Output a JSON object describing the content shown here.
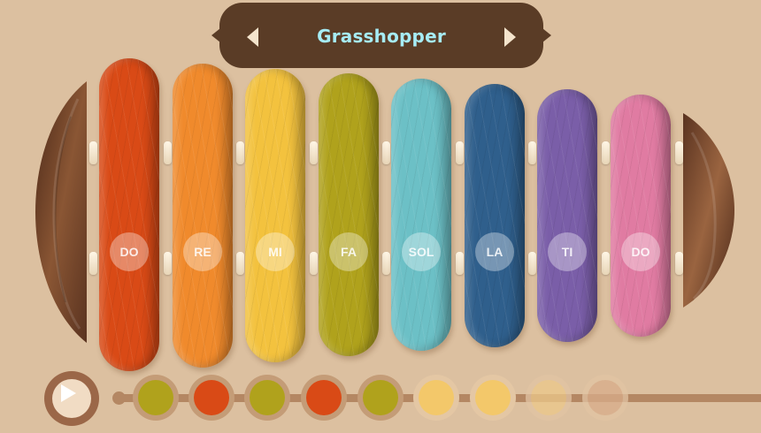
{
  "title": "Grasshopper",
  "colors": {
    "background": "#dcc0a0",
    "banner": "#5a3c26",
    "title_text": "#a6ecf5"
  },
  "bars": [
    {
      "note": "DO",
      "color": "#d94a16"
    },
    {
      "note": "RE",
      "color": "#f08a2c"
    },
    {
      "note": "MI",
      "color": "#f3c23e"
    },
    {
      "note": "FA",
      "color": "#b0a21c"
    },
    {
      "note": "SOL",
      "color": "#6cc0c6"
    },
    {
      "note": "LA",
      "color": "#2f5f8c"
    },
    {
      "note": "TI",
      "color": "#7a5ea8"
    },
    {
      "note": "DO",
      "color": "#e07ba2"
    }
  ],
  "sequence": [
    {
      "color": "#b0a21c",
      "state": "played"
    },
    {
      "color": "#d94a16",
      "state": "played"
    },
    {
      "color": "#b0a21c",
      "state": "played"
    },
    {
      "color": "#d94a16",
      "state": "played"
    },
    {
      "color": "#b0a21c",
      "state": "played"
    },
    {
      "color": "#f3c86a",
      "state": "upcoming"
    },
    {
      "color": "#f3c86a",
      "state": "upcoming"
    },
    {
      "color": "#edc98a",
      "state": "faded"
    },
    {
      "color": "#d8ad8a",
      "state": "faded"
    }
  ],
  "icons": {
    "prev": "chevron-left-icon",
    "next": "chevron-right-icon",
    "play": "play-icon"
  }
}
